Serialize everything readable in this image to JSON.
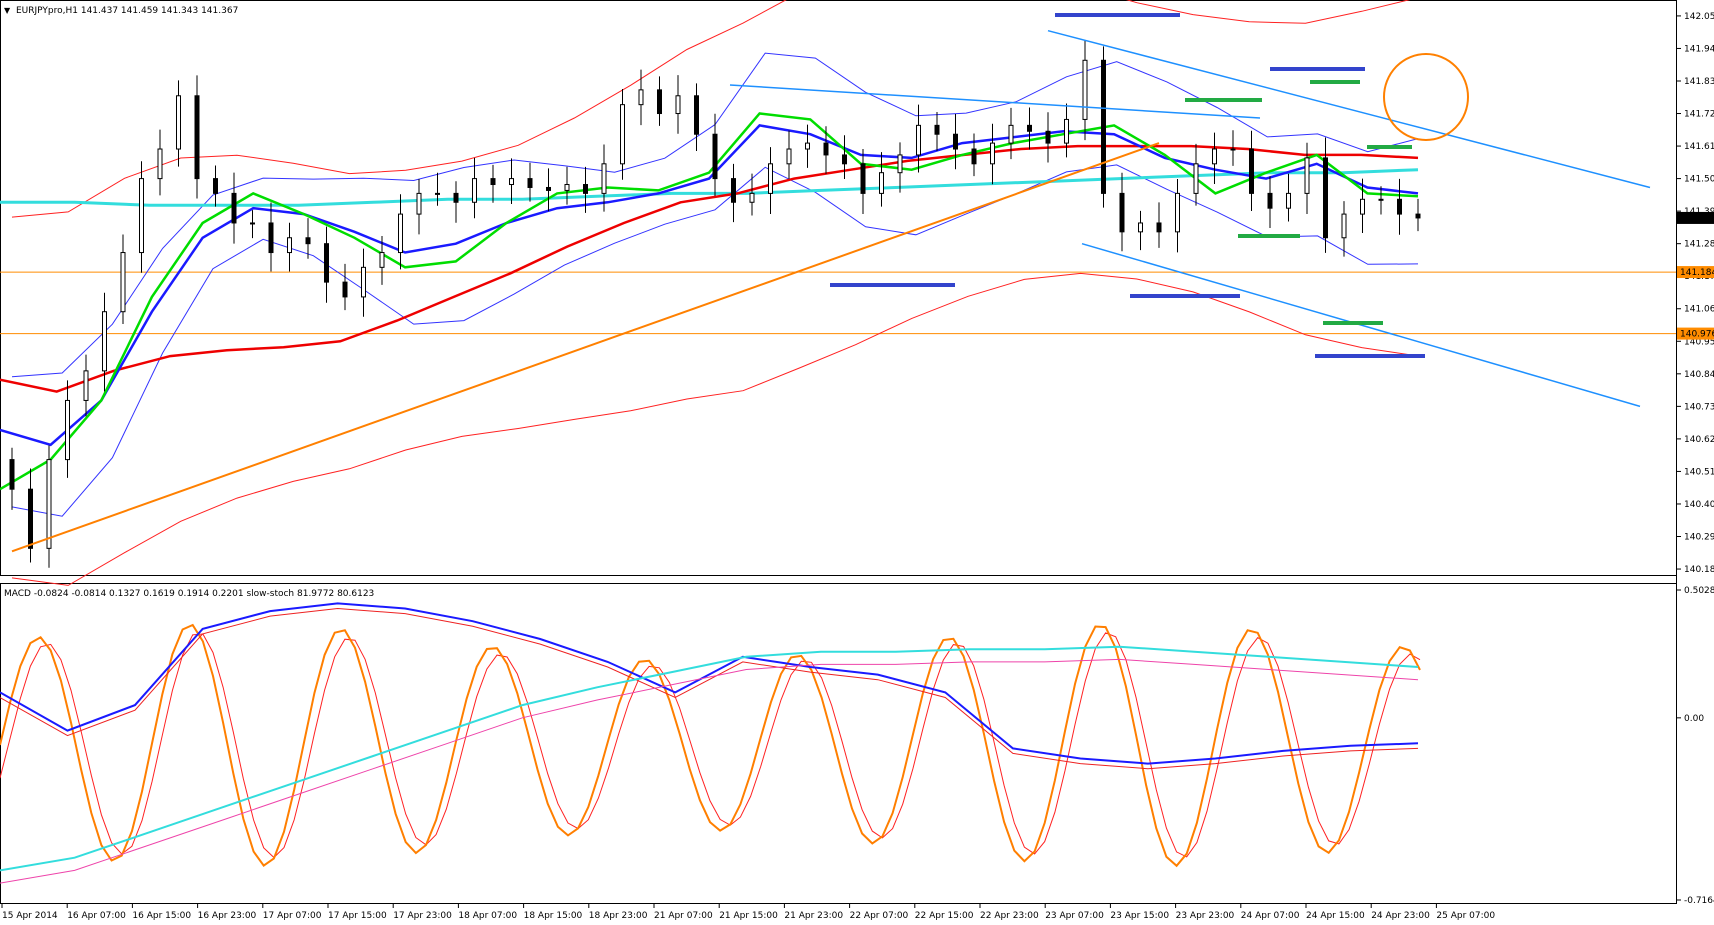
{
  "window": {
    "symbol_info": "EURJPYpro,H1  141.437 141.459 141.343 141.367",
    "macd_info": "MACD -0.0824 -0.0814 0.1327 0.1619 0.1914 0.2201  slow-stoch 81.9772 80.6123"
  },
  "colors": {
    "background": "#ffffff",
    "bull_candle": "#ffffff",
    "bear_candle": "#000000",
    "ma_fast": "#00dd00",
    "ma_mid": "#1a1aff",
    "ma_slow": "#ee0000",
    "ma_long": "#33dddd",
    "bollinger_inner": "#3333ff",
    "bollinger_outer": "#ff2222",
    "trendline_orange": "#ff8000",
    "channel_blue": "#1e90ff",
    "level_orange": "#ff8c00",
    "marker_blue": "#3344cc",
    "marker_green": "#22aa44",
    "stoch_main": "#ff7f00",
    "stoch_signal": "#ff2222",
    "macd_main": "#1a1aff",
    "macd_signal": "#ee2222",
    "macd_hist_line": "#33dddd",
    "macd_pink": "#ee44aa"
  },
  "chart_data": [
    {
      "type": "line",
      "panel": "price",
      "yaxis_ticks": [
        "142.050",
        "141.940",
        "141.830",
        "141.720",
        "141.610",
        "141.500",
        "141.390",
        "141.280",
        "141.170",
        "141.060",
        "140.950",
        "140.840",
        "140.730",
        "140.620",
        "140.510",
        "140.400",
        "140.290",
        "140.180"
      ],
      "ylim": [
        140.17,
        142.07
      ],
      "current_price_label": "141.367",
      "level_labels": [
        "141.184",
        "140.976"
      ],
      "levels": [
        141.184,
        140.976
      ],
      "xaxis_ticks": [
        "15 Apr 2014",
        "16 Apr 07:00",
        "16 Apr 15:00",
        "16 Apr 23:00",
        "17 Apr 07:00",
        "17 Apr 15:00",
        "17 Apr 23:00",
        "18 Apr 07:00",
        "18 Apr 15:00",
        "18 Apr 23:00",
        "21 Apr 07:00",
        "21 Apr 15:00",
        "21 Apr 23:00",
        "22 Apr 07:00",
        "22 Apr 15:00",
        "22 Apr 23:00",
        "23 Apr 07:00",
        "23 Apr 15:00",
        "23 Apr 23:00",
        "24 Apr 07:00",
        "24 Apr 15:00",
        "24 Apr 23:00",
        "25 Apr 07:00"
      ],
      "closes": [
        140.45,
        140.25,
        140.55,
        140.75,
        140.85,
        141.05,
        141.25,
        141.5,
        141.6,
        141.78,
        141.5,
        141.45,
        141.35,
        141.35,
        141.25,
        141.3,
        141.28,
        141.15,
        141.1,
        141.2,
        141.25,
        141.38,
        141.45,
        141.45,
        141.42,
        141.5,
        141.48,
        141.5,
        141.47,
        141.46,
        141.48,
        141.45,
        141.55,
        141.75,
        141.8,
        141.72,
        141.78,
        141.65,
        141.5,
        141.42,
        141.45,
        141.55,
        141.6,
        141.62,
        141.58,
        141.55,
        141.45,
        141.52,
        141.58,
        141.68,
        141.65,
        141.6,
        141.55,
        141.62,
        141.68,
        141.66,
        141.62,
        141.7,
        141.9,
        141.45,
        141.32,
        141.35,
        141.32,
        141.45,
        141.55,
        141.6,
        141.6,
        141.45,
        141.4,
        141.45,
        141.57,
        141.3,
        141.38,
        141.43,
        141.43,
        141.38,
        141.367
      ],
      "ma_fast": [
        140.45,
        140.55,
        140.75,
        141.1,
        141.35,
        141.45,
        141.38,
        141.3,
        141.2,
        141.22,
        141.35,
        141.45,
        141.47,
        141.46,
        141.52,
        141.72,
        141.7,
        141.55,
        141.53,
        141.58,
        141.62,
        141.65,
        141.68,
        141.58,
        141.45,
        141.52,
        141.58,
        141.45,
        141.44
      ],
      "ma_mid": [
        140.65,
        140.6,
        140.75,
        141.05,
        141.3,
        141.4,
        141.38,
        141.32,
        141.25,
        141.28,
        141.35,
        141.4,
        141.42,
        141.45,
        141.5,
        141.68,
        141.65,
        141.58,
        141.57,
        141.62,
        141.64,
        141.66,
        141.65,
        141.57,
        141.53,
        141.5,
        141.55,
        141.47,
        141.45
      ],
      "ma_slow": [
        140.82,
        140.78,
        140.85,
        140.9,
        140.92,
        140.93,
        140.95,
        141.02,
        141.1,
        141.18,
        141.27,
        141.35,
        141.42,
        141.45,
        141.5,
        141.53,
        141.56,
        141.58,
        141.6,
        141.61,
        141.61,
        141.61,
        141.6,
        141.58,
        141.58,
        141.57
      ],
      "ma_long": [
        141.42,
        141.42,
        141.41,
        141.41,
        141.41,
        141.42,
        141.43,
        141.43,
        141.44,
        141.45,
        141.45,
        141.46,
        141.47,
        141.48,
        141.49,
        141.5,
        141.51,
        141.52,
        141.52,
        141.53
      ],
      "trendline_orange": {
        "from": [
          0,
          140.24
        ],
        "to": [
          62,
          141.62
        ]
      },
      "channel_upper": {
        "from": [
          56,
          142.0
        ],
        "to": [
          85,
          141.47
        ]
      },
      "channel_lower": {
        "from": [
          56,
          141.28
        ],
        "to": [
          85,
          140.73
        ]
      }
    },
    {
      "type": "line",
      "panel": "indicator",
      "yaxis_ticks": [
        "0.5028",
        "0.00",
        "-0.7164"
      ],
      "ylim": [
        -0.7164,
        0.5028
      ],
      "series": [
        {
          "values": [
            0.1,
            -0.05,
            0.05,
            0.35,
            0.42,
            0.45,
            0.43,
            0.38,
            0.31,
            0.22,
            0.1,
            0.24,
            0.2,
            0.17,
            0.1,
            -0.12,
            -0.16,
            -0.18,
            -0.16,
            -0.13,
            -0.11,
            -0.1
          ]
        },
        {
          "values": [
            -0.6,
            -0.55,
            -0.45,
            -0.35,
            -0.25,
            -0.15,
            -0.05,
            0.05,
            0.12,
            0.18,
            0.24,
            0.26,
            0.26,
            0.27,
            0.27,
            0.28,
            0.26,
            0.24,
            0.22,
            0.2
          ]
        }
      ]
    }
  ]
}
